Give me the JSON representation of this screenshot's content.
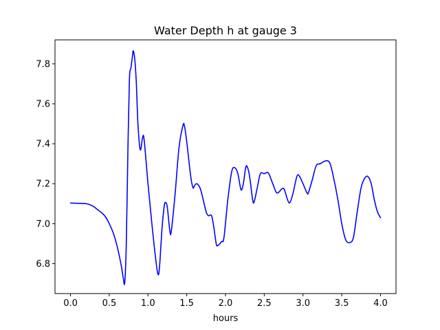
{
  "chart_data": {
    "type": "line",
    "title": "Water Depth h at gauge 3",
    "xlabel": "hours",
    "ylabel": "",
    "xlim": [
      -0.2,
      4.2
    ],
    "ylim": [
      6.65,
      7.92
    ],
    "xticks": [
      0.0,
      0.5,
      1.0,
      1.5,
      2.0,
      2.5,
      3.0,
      3.5,
      4.0
    ],
    "xtick_labels": [
      "0.0",
      "0.5",
      "1.0",
      "1.5",
      "2.0",
      "2.5",
      "3.0",
      "3.5",
      "4.0"
    ],
    "yticks": [
      6.8,
      7.0,
      7.2,
      7.4,
      7.6,
      7.8
    ],
    "ytick_labels": [
      "6.8",
      "7.0",
      "7.2",
      "7.4",
      "7.6",
      "7.8"
    ],
    "grid": false,
    "series": [
      {
        "name": "h",
        "color": "#0000ff",
        "points": [
          [
            0.0,
            7.103
          ],
          [
            0.1,
            7.102
          ],
          [
            0.2,
            7.1
          ],
          [
            0.25,
            7.095
          ],
          [
            0.3,
            7.085
          ],
          [
            0.35,
            7.07
          ],
          [
            0.4,
            7.055
          ],
          [
            0.45,
            7.035
          ],
          [
            0.5,
            7.0
          ],
          [
            0.55,
            6.955
          ],
          [
            0.6,
            6.89
          ],
          [
            0.65,
            6.8
          ],
          [
            0.68,
            6.73
          ],
          [
            0.7,
            6.705
          ],
          [
            0.72,
            6.9
          ],
          [
            0.74,
            7.35
          ],
          [
            0.76,
            7.72
          ],
          [
            0.78,
            7.78
          ],
          [
            0.8,
            7.84
          ],
          [
            0.81,
            7.865
          ],
          [
            0.83,
            7.82
          ],
          [
            0.85,
            7.7
          ],
          [
            0.87,
            7.5
          ],
          [
            0.9,
            7.37
          ],
          [
            0.93,
            7.43
          ],
          [
            0.95,
            7.42
          ],
          [
            1.0,
            7.2
          ],
          [
            1.05,
            7.0
          ],
          [
            1.1,
            6.82
          ],
          [
            1.13,
            6.745
          ],
          [
            1.15,
            6.79
          ],
          [
            1.18,
            6.97
          ],
          [
            1.21,
            7.09
          ],
          [
            1.23,
            7.105
          ],
          [
            1.25,
            7.08
          ],
          [
            1.28,
            6.97
          ],
          [
            1.3,
            6.96
          ],
          [
            1.35,
            7.15
          ],
          [
            1.4,
            7.38
          ],
          [
            1.45,
            7.49
          ],
          [
            1.47,
            7.49
          ],
          [
            1.5,
            7.41
          ],
          [
            1.55,
            7.24
          ],
          [
            1.58,
            7.18
          ],
          [
            1.6,
            7.19
          ],
          [
            1.63,
            7.2
          ],
          [
            1.67,
            7.18
          ],
          [
            1.7,
            7.14
          ],
          [
            1.75,
            7.06
          ],
          [
            1.78,
            7.04
          ],
          [
            1.82,
            7.04
          ],
          [
            1.85,
            6.98
          ],
          [
            1.88,
            6.9
          ],
          [
            1.9,
            6.89
          ],
          [
            1.95,
            6.91
          ],
          [
            1.98,
            6.93
          ],
          [
            2.03,
            7.12
          ],
          [
            2.08,
            7.26
          ],
          [
            2.12,
            7.28
          ],
          [
            2.16,
            7.25
          ],
          [
            2.2,
            7.17
          ],
          [
            2.23,
            7.2
          ],
          [
            2.26,
            7.28
          ],
          [
            2.28,
            7.285
          ],
          [
            2.31,
            7.24
          ],
          [
            2.35,
            7.12
          ],
          [
            2.37,
            7.11
          ],
          [
            2.41,
            7.18
          ],
          [
            2.45,
            7.25
          ],
          [
            2.5,
            7.25
          ],
          [
            2.55,
            7.255
          ],
          [
            2.6,
            7.21
          ],
          [
            2.65,
            7.16
          ],
          [
            2.68,
            7.155
          ],
          [
            2.73,
            7.175
          ],
          [
            2.76,
            7.17
          ],
          [
            2.8,
            7.12
          ],
          [
            2.83,
            7.105
          ],
          [
            2.87,
            7.15
          ],
          [
            2.92,
            7.235
          ],
          [
            2.95,
            7.24
          ],
          [
            3.0,
            7.2
          ],
          [
            3.05,
            7.155
          ],
          [
            3.07,
            7.155
          ],
          [
            3.12,
            7.22
          ],
          [
            3.17,
            7.29
          ],
          [
            3.22,
            7.3
          ],
          [
            3.3,
            7.315
          ],
          [
            3.35,
            7.3
          ],
          [
            3.4,
            7.22
          ],
          [
            3.45,
            7.12
          ],
          [
            3.5,
            7.0
          ],
          [
            3.55,
            6.92
          ],
          [
            3.6,
            6.905
          ],
          [
            3.65,
            6.93
          ],
          [
            3.7,
            7.06
          ],
          [
            3.75,
            7.18
          ],
          [
            3.8,
            7.23
          ],
          [
            3.84,
            7.235
          ],
          [
            3.88,
            7.2
          ],
          [
            3.92,
            7.12
          ],
          [
            3.96,
            7.06
          ],
          [
            4.0,
            7.03
          ]
        ]
      }
    ]
  }
}
